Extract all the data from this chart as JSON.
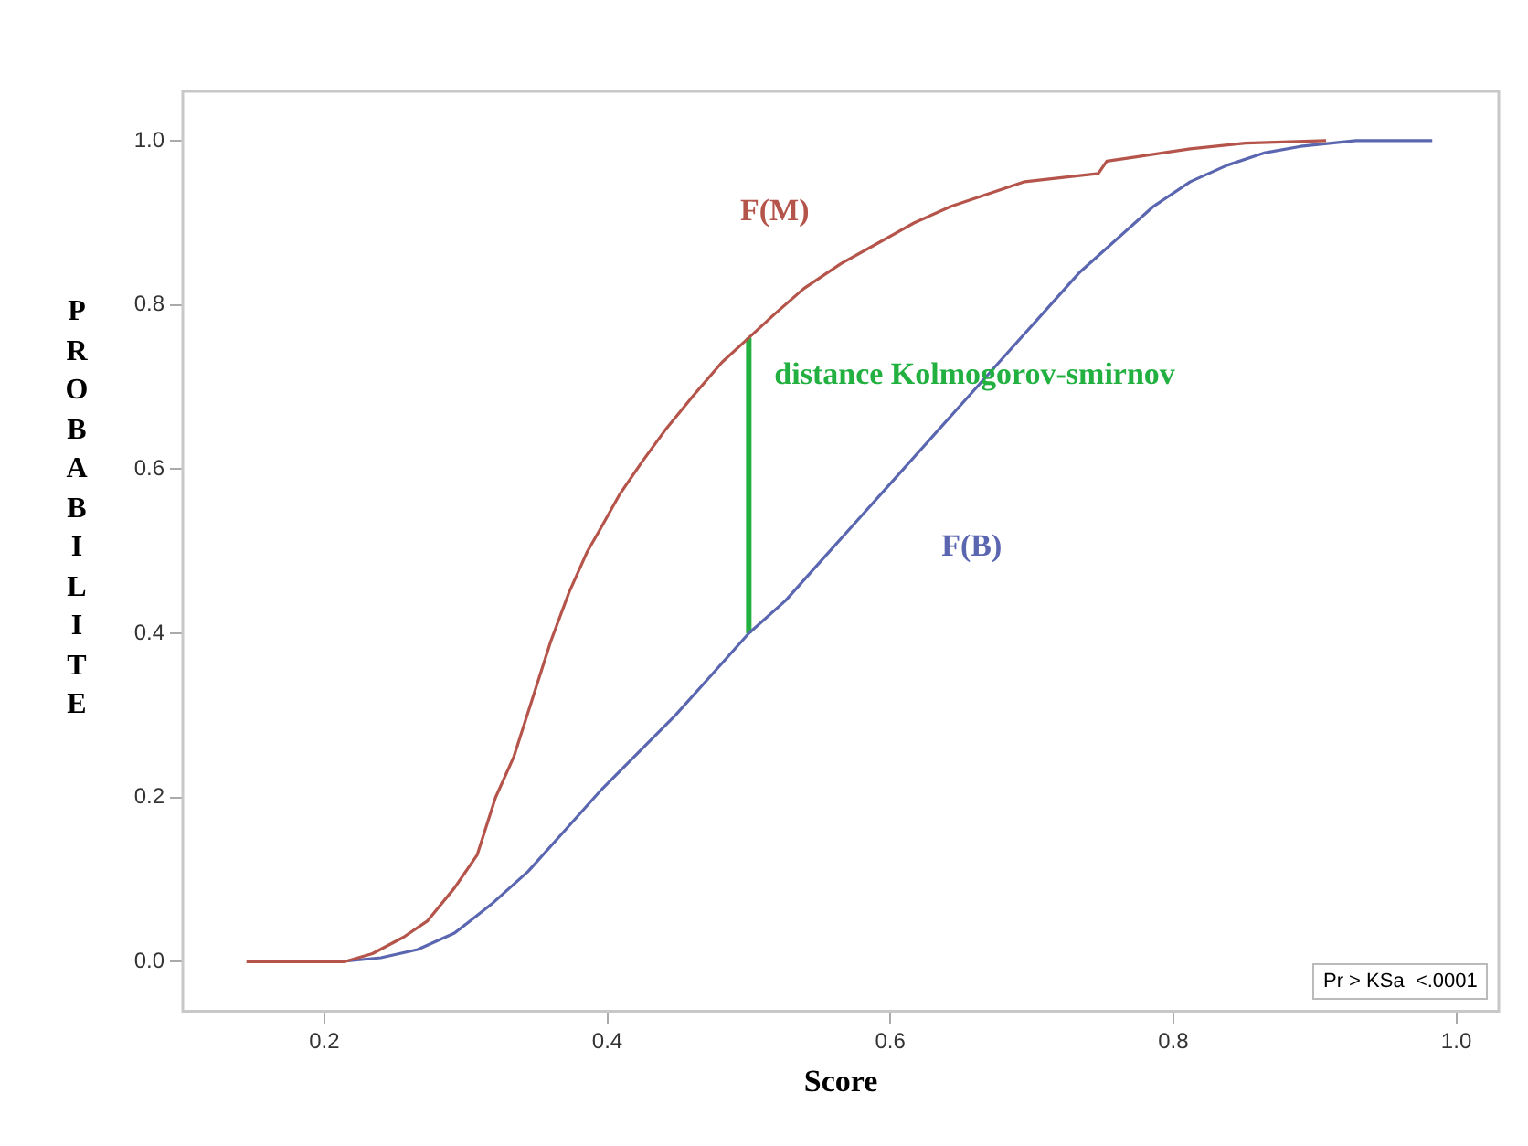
{
  "chart_data": {
    "type": "line",
    "xlabel": "Score",
    "ylabel": "PROBABILITE",
    "xlim": [
      0.1,
      1.03
    ],
    "ylim": [
      -0.06,
      1.06
    ],
    "xticks": [
      {
        "value": 0.2,
        "label": "0.2"
      },
      {
        "value": 0.4,
        "label": "0.4"
      },
      {
        "value": 0.6,
        "label": "0.6"
      },
      {
        "value": 0.8,
        "label": "0.8"
      },
      {
        "value": 1.0,
        "label": "1.0"
      }
    ],
    "yticks": [
      {
        "value": 0,
        "label": "0.0"
      },
      {
        "value": 0.2,
        "label": "0.2"
      },
      {
        "value": 0.4,
        "label": "0.4"
      },
      {
        "value": 0.6,
        "label": "0.6"
      },
      {
        "value": 0.8,
        "label": "0.8"
      },
      {
        "value": 1.0,
        "label": "1.0"
      }
    ],
    "grid": false,
    "legend": false,
    "series": [
      {
        "name": "F(M)",
        "color": "#b5544a",
        "x": [
          0.145,
          0.214,
          0.234,
          0.256,
          0.273,
          0.292,
          0.308,
          0.321,
          0.334,
          0.347,
          0.36,
          0.373,
          0.386,
          0.396,
          0.409,
          0.425,
          0.442,
          0.461,
          0.481,
          0.5,
          0.519,
          0.539,
          0.565,
          0.591,
          0.617,
          0.643,
          0.669,
          0.695,
          0.721,
          0.747,
          0.753,
          0.773,
          0.812,
          0.851,
          0.908
        ],
        "values": [
          0,
          0,
          0.01,
          0.03,
          0.05,
          0.09,
          0.13,
          0.2,
          0.25,
          0.32,
          0.39,
          0.45,
          0.5,
          0.53,
          0.57,
          0.61,
          0.65,
          0.69,
          0.73,
          0.76,
          0.79,
          0.82,
          0.85,
          0.875,
          0.9,
          0.92,
          0.935,
          0.95,
          0.955,
          0.96,
          0.975,
          0.98,
          0.99,
          0.997,
          1.0
        ]
      },
      {
        "name": "F(B)",
        "color": "#5a66b0",
        "x": [
          0.21,
          0.24,
          0.266,
          0.292,
          0.318,
          0.344,
          0.37,
          0.396,
          0.422,
          0.448,
          0.474,
          0.5,
          0.526,
          0.552,
          0.578,
          0.604,
          0.63,
          0.656,
          0.682,
          0.708,
          0.734,
          0.76,
          0.786,
          0.812,
          0.838,
          0.864,
          0.89,
          0.929,
          0.983
        ],
        "values": [
          0,
          0.005,
          0.015,
          0.035,
          0.07,
          0.11,
          0.16,
          0.21,
          0.255,
          0.3,
          0.35,
          0.4,
          0.44,
          0.49,
          0.54,
          0.59,
          0.64,
          0.69,
          0.74,
          0.79,
          0.84,
          0.88,
          0.92,
          0.95,
          0.97,
          0.985,
          0.993,
          1.0,
          1.0
        ]
      },
      {
        "type": "line",
        "color": "#22b040",
        "x": [
          0.5,
          0.5
        ],
        "values": [
          0.4,
          0.76
        ]
      }
    ],
    "annotations": [
      "distance Kolmogorov-smirnov",
      "Pr > KSa  <.0001"
    ]
  }
}
